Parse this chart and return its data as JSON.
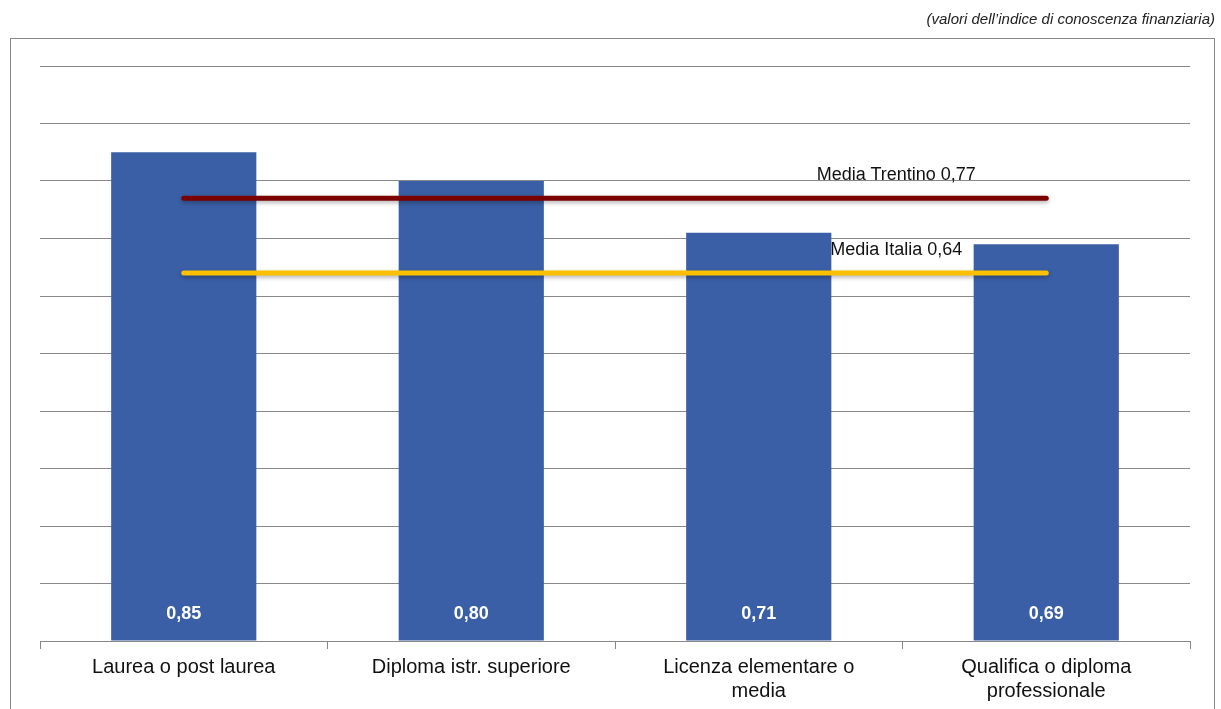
{
  "chart_data": {
    "type": "bar",
    "categories": [
      "Laurea o post laurea",
      "Diploma istr. superiore",
      "Licenza elementare o media",
      "Qualifica o diploma professionale"
    ],
    "values": [
      0.85,
      0.8,
      0.71,
      0.69
    ],
    "color": "#3a5fa6",
    "data_labels": true,
    "value_labels": [
      "0,85",
      "0,80",
      "0,71",
      "0,69"
    ],
    "ylim": [
      0,
      1
    ],
    "yticks": [
      {
        "value": 0,
        "label": null
      },
      {
        "value": 0.1,
        "label": null
      },
      {
        "value": 0.2,
        "label": null
      },
      {
        "value": 0.3,
        "label": null
      },
      {
        "value": 0.4,
        "label": null
      },
      {
        "value": 0.5,
        "label": null
      },
      {
        "value": 0.6,
        "label": null
      },
      {
        "value": 0.7,
        "label": null
      },
      {
        "value": 0.8,
        "label": null
      },
      {
        "value": 0.9,
        "label": null
      },
      {
        "value": 1,
        "label": null
      }
    ],
    "tick_labels": "x",
    "grid": "y",
    "legend": false,
    "ref_lines": [
      {
        "axis": "y",
        "value": 0.77,
        "label": "Media Trentino 0,77",
        "color": "#7b0000"
      },
      {
        "axis": "y",
        "value": 0.64,
        "label": "Media Italia 0,64",
        "color": "#ffc000"
      }
    ],
    "annotations": [
      "(valori dell’indice di conoscenza finanziaria)"
    ]
  }
}
